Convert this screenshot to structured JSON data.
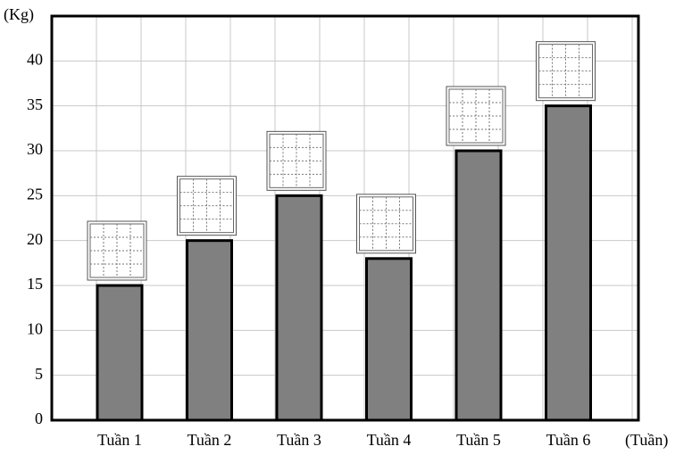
{
  "chart_data": {
    "type": "bar",
    "y_label": "(Kg)",
    "x_label": "(Tuần)",
    "categories": [
      "Tuần 1",
      "Tuần 2",
      "Tuần 3",
      "Tuần 4",
      "Tuần 5",
      "Tuần 6"
    ],
    "values": [
      15,
      20,
      25,
      18,
      30,
      35
    ],
    "color": "#808080",
    "ylim": [
      0,
      45
    ],
    "yticks": [
      0,
      5,
      10,
      15,
      20,
      25,
      30,
      35,
      40
    ],
    "grid": true
  }
}
